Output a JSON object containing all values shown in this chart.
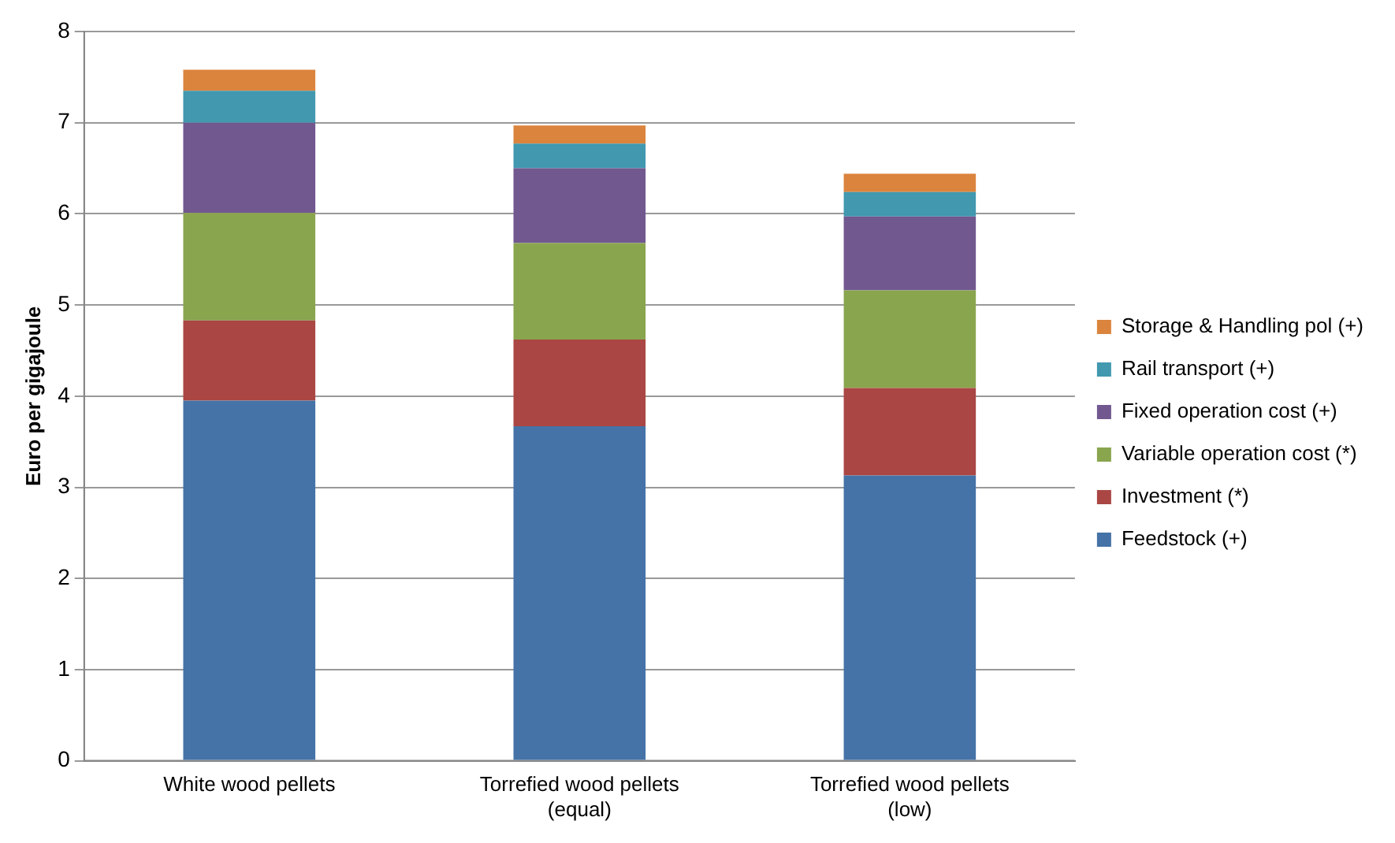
{
  "chart_data": {
    "type": "bar",
    "stacked": true,
    "ylabel": "Euro per gigajoule",
    "categories": [
      "White wood pellets",
      "Torrefied wood pellets\n(equal)",
      "Torrefied wood pellets\n(low)"
    ],
    "series": [
      {
        "name": "Feedstock (+)",
        "color": "#4572a7",
        "values": [
          3.95,
          3.67,
          3.13
        ]
      },
      {
        "name": "Investment (*)",
        "color": "#aa4643",
        "values": [
          0.88,
          0.95,
          0.96
        ]
      },
      {
        "name": "Variable operation cost (*)",
        "color": "#89a54e",
        "values": [
          1.18,
          1.06,
          1.07
        ]
      },
      {
        "name": "Fixed operation cost (+)",
        "color": "#71588f",
        "values": [
          0.99,
          0.82,
          0.81
        ]
      },
      {
        "name": "Rail transport (+)",
        "color": "#4198af",
        "values": [
          0.35,
          0.27,
          0.27
        ]
      },
      {
        "name": "Storage & Handling pol (+)",
        "color": "#db843d",
        "values": [
          0.23,
          0.2,
          0.2
        ]
      }
    ],
    "ylim": [
      0,
      8
    ],
    "yticks": [
      0,
      1,
      2,
      3,
      4,
      5,
      6,
      7,
      8
    ],
    "grid": "y",
    "legend": "right"
  }
}
